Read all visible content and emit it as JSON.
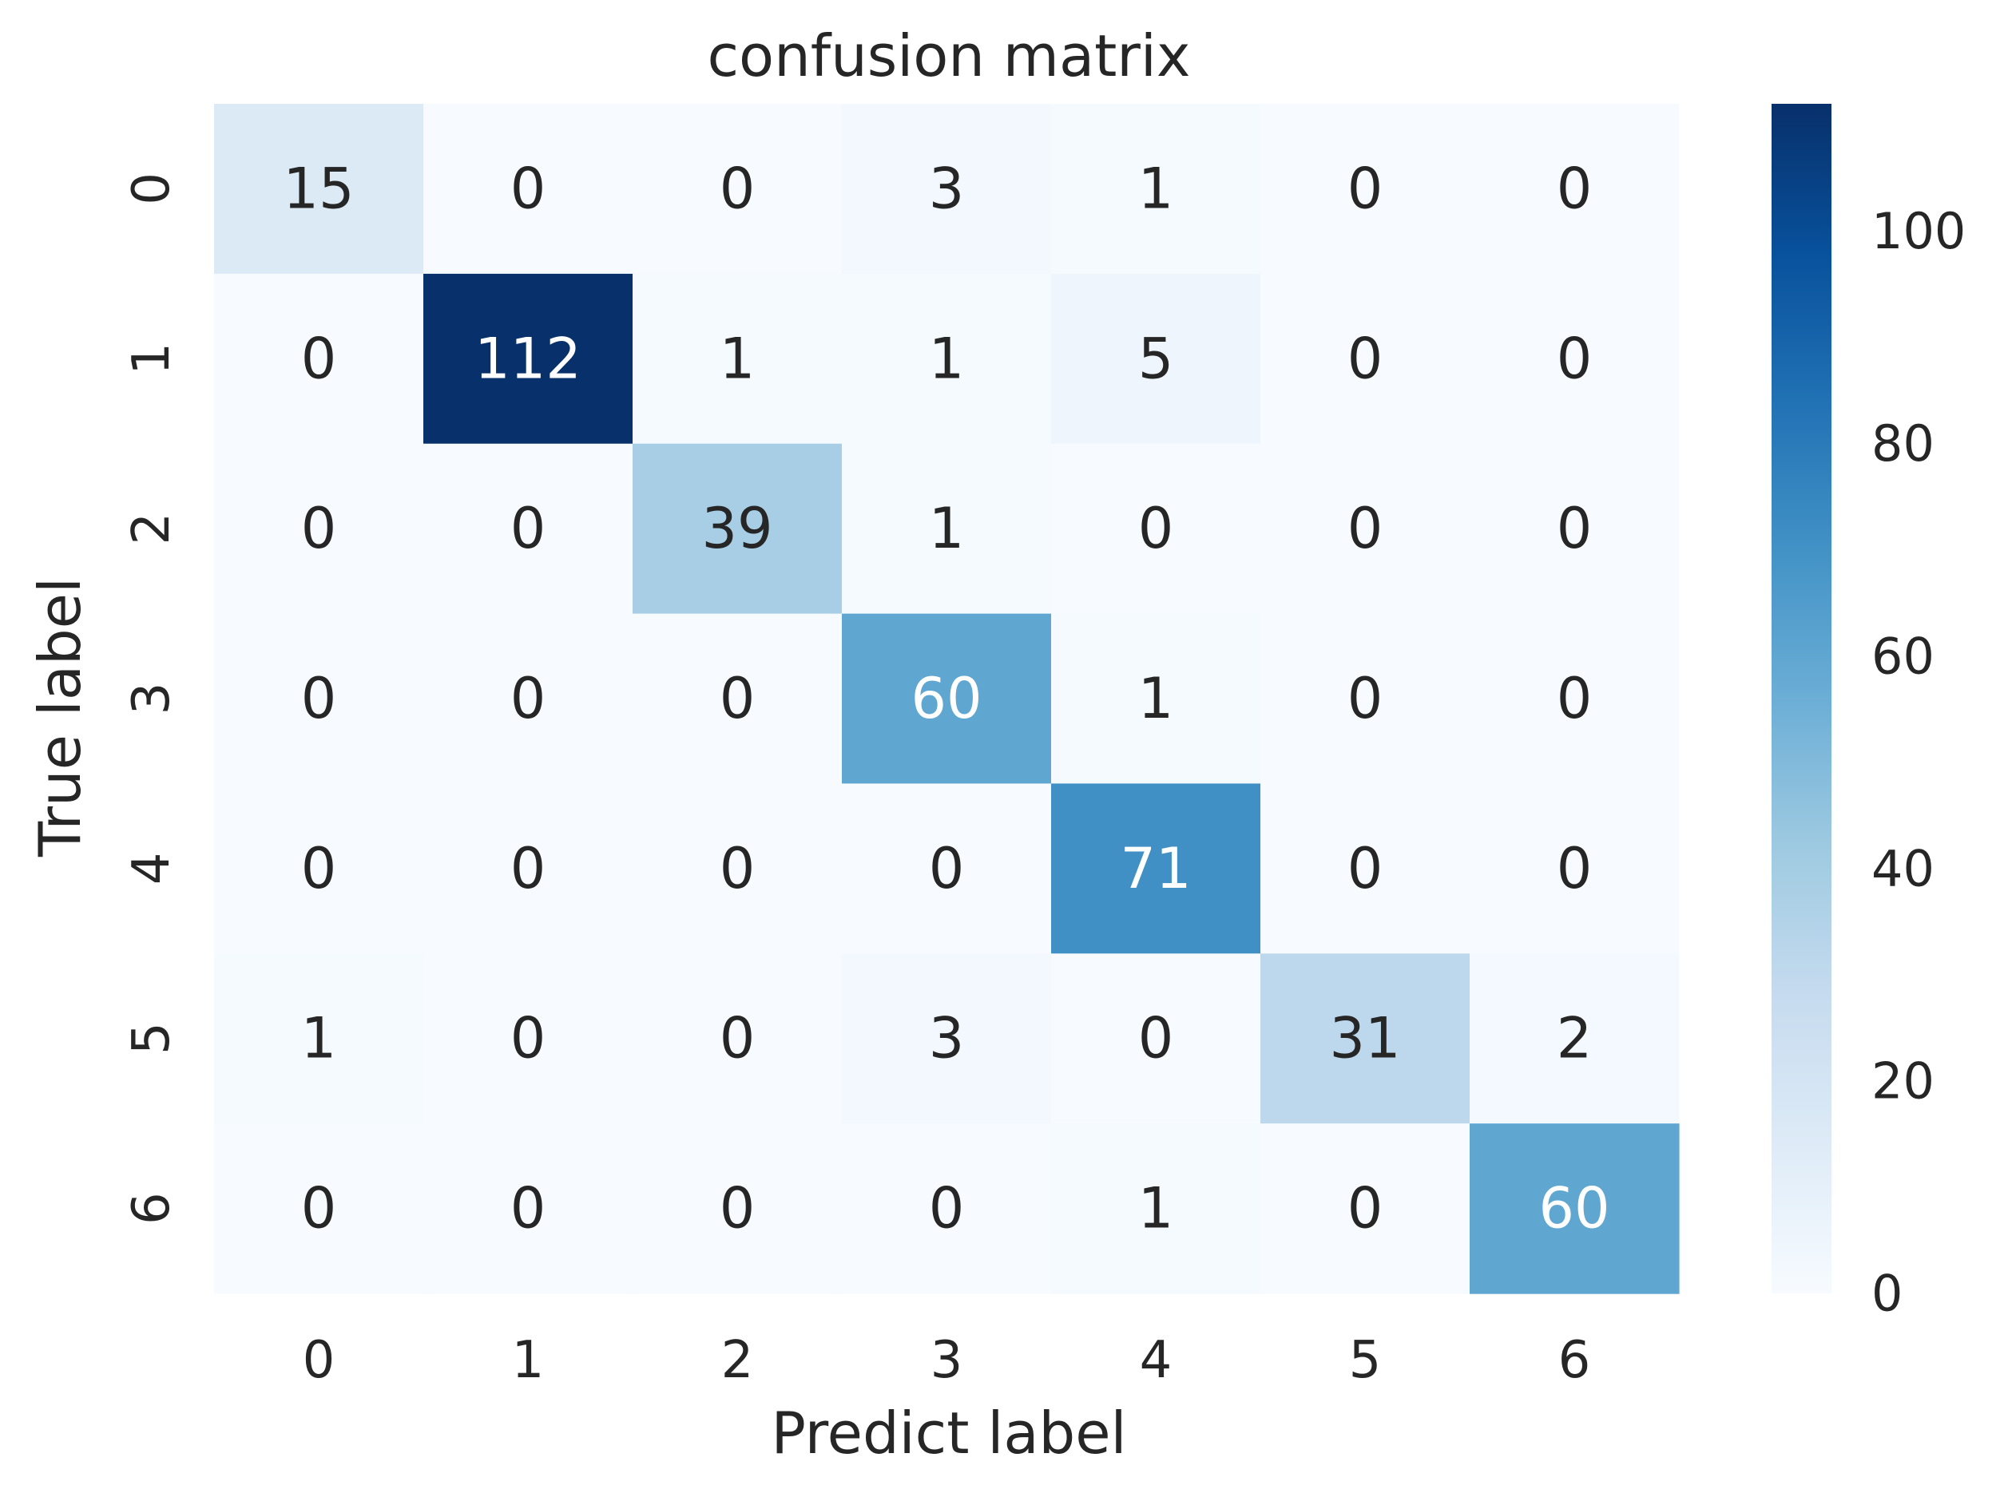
{
  "chart_data": {
    "type": "heatmap",
    "title": "confusion matrix",
    "xlabel": "Predict label",
    "ylabel": "True label",
    "x_categories": [
      "0",
      "1",
      "2",
      "3",
      "4",
      "5",
      "6"
    ],
    "y_categories": [
      "0",
      "1",
      "2",
      "3",
      "4",
      "5",
      "6"
    ],
    "values": [
      [
        15,
        0,
        0,
        3,
        1,
        0,
        0
      ],
      [
        0,
        112,
        1,
        1,
        5,
        0,
        0
      ],
      [
        0,
        0,
        39,
        1,
        0,
        0,
        0
      ],
      [
        0,
        0,
        0,
        60,
        1,
        0,
        0
      ],
      [
        0,
        0,
        0,
        0,
        71,
        0,
        0
      ],
      [
        1,
        0,
        0,
        3,
        0,
        31,
        2
      ],
      [
        0,
        0,
        0,
        0,
        1,
        0,
        60
      ]
    ],
    "colormap": "Blues",
    "colormap_stops": [
      "#f7fbff",
      "#deebf7",
      "#c6dbef",
      "#9ecae1",
      "#6baed6",
      "#4292c6",
      "#2171b5",
      "#08519c",
      "#08306b"
    ],
    "value_range": [
      0,
      112
    ],
    "colorbar": {
      "ticks": [
        "0",
        "20",
        "40",
        "60",
        "80",
        "100"
      ]
    },
    "text_colors": {
      "light_bg": "#262626",
      "dark_bg": "#ffffff"
    }
  }
}
